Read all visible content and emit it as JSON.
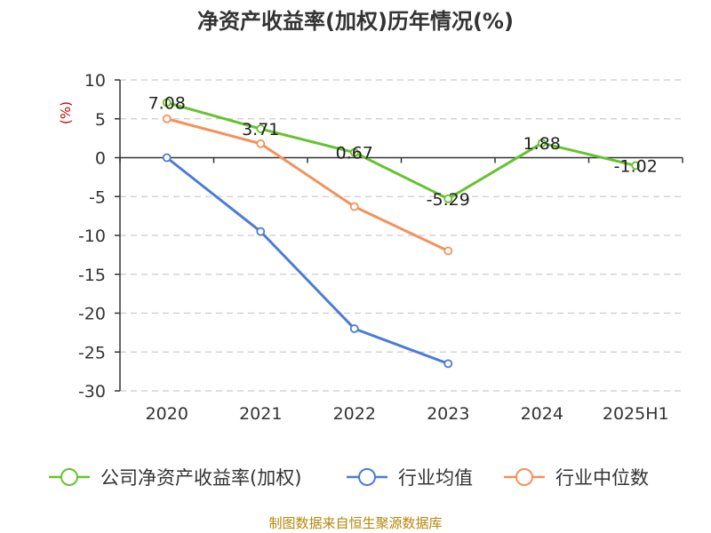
{
  "chart_data": {
    "type": "line",
    "title": "净资产收益率(加权)历年情况(%)",
    "ylabel": "(%)",
    "xlabel": "",
    "categories": [
      "2020",
      "2021",
      "2022",
      "2023",
      "2024",
      "2025H1"
    ],
    "ylim": [
      -30,
      10
    ],
    "yticks": [
      10,
      5,
      0,
      -5,
      -10,
      -15,
      -20,
      -25,
      -30
    ],
    "grid": true,
    "legend_position": "bottom",
    "series": [
      {
        "name": "公司净资产收益率(加权)",
        "color": "#66c22f",
        "values": [
          7.08,
          3.71,
          0.67,
          -5.29,
          1.88,
          -1.02
        ],
        "labels": [
          "7.08",
          "3.71",
          "0.67",
          "-5.29",
          "1.88",
          "-1.02"
        ]
      },
      {
        "name": "行业均值",
        "color": "#4a7bd6",
        "values": [
          0.0,
          -9.5,
          -22.0,
          -26.5,
          null,
          null
        ]
      },
      {
        "name": "行业中位数",
        "color": "#f5915b",
        "values": [
          5.0,
          1.8,
          -6.3,
          -12.0,
          null,
          null
        ]
      }
    ],
    "source": "制图数据来自恒生聚源数据库"
  }
}
